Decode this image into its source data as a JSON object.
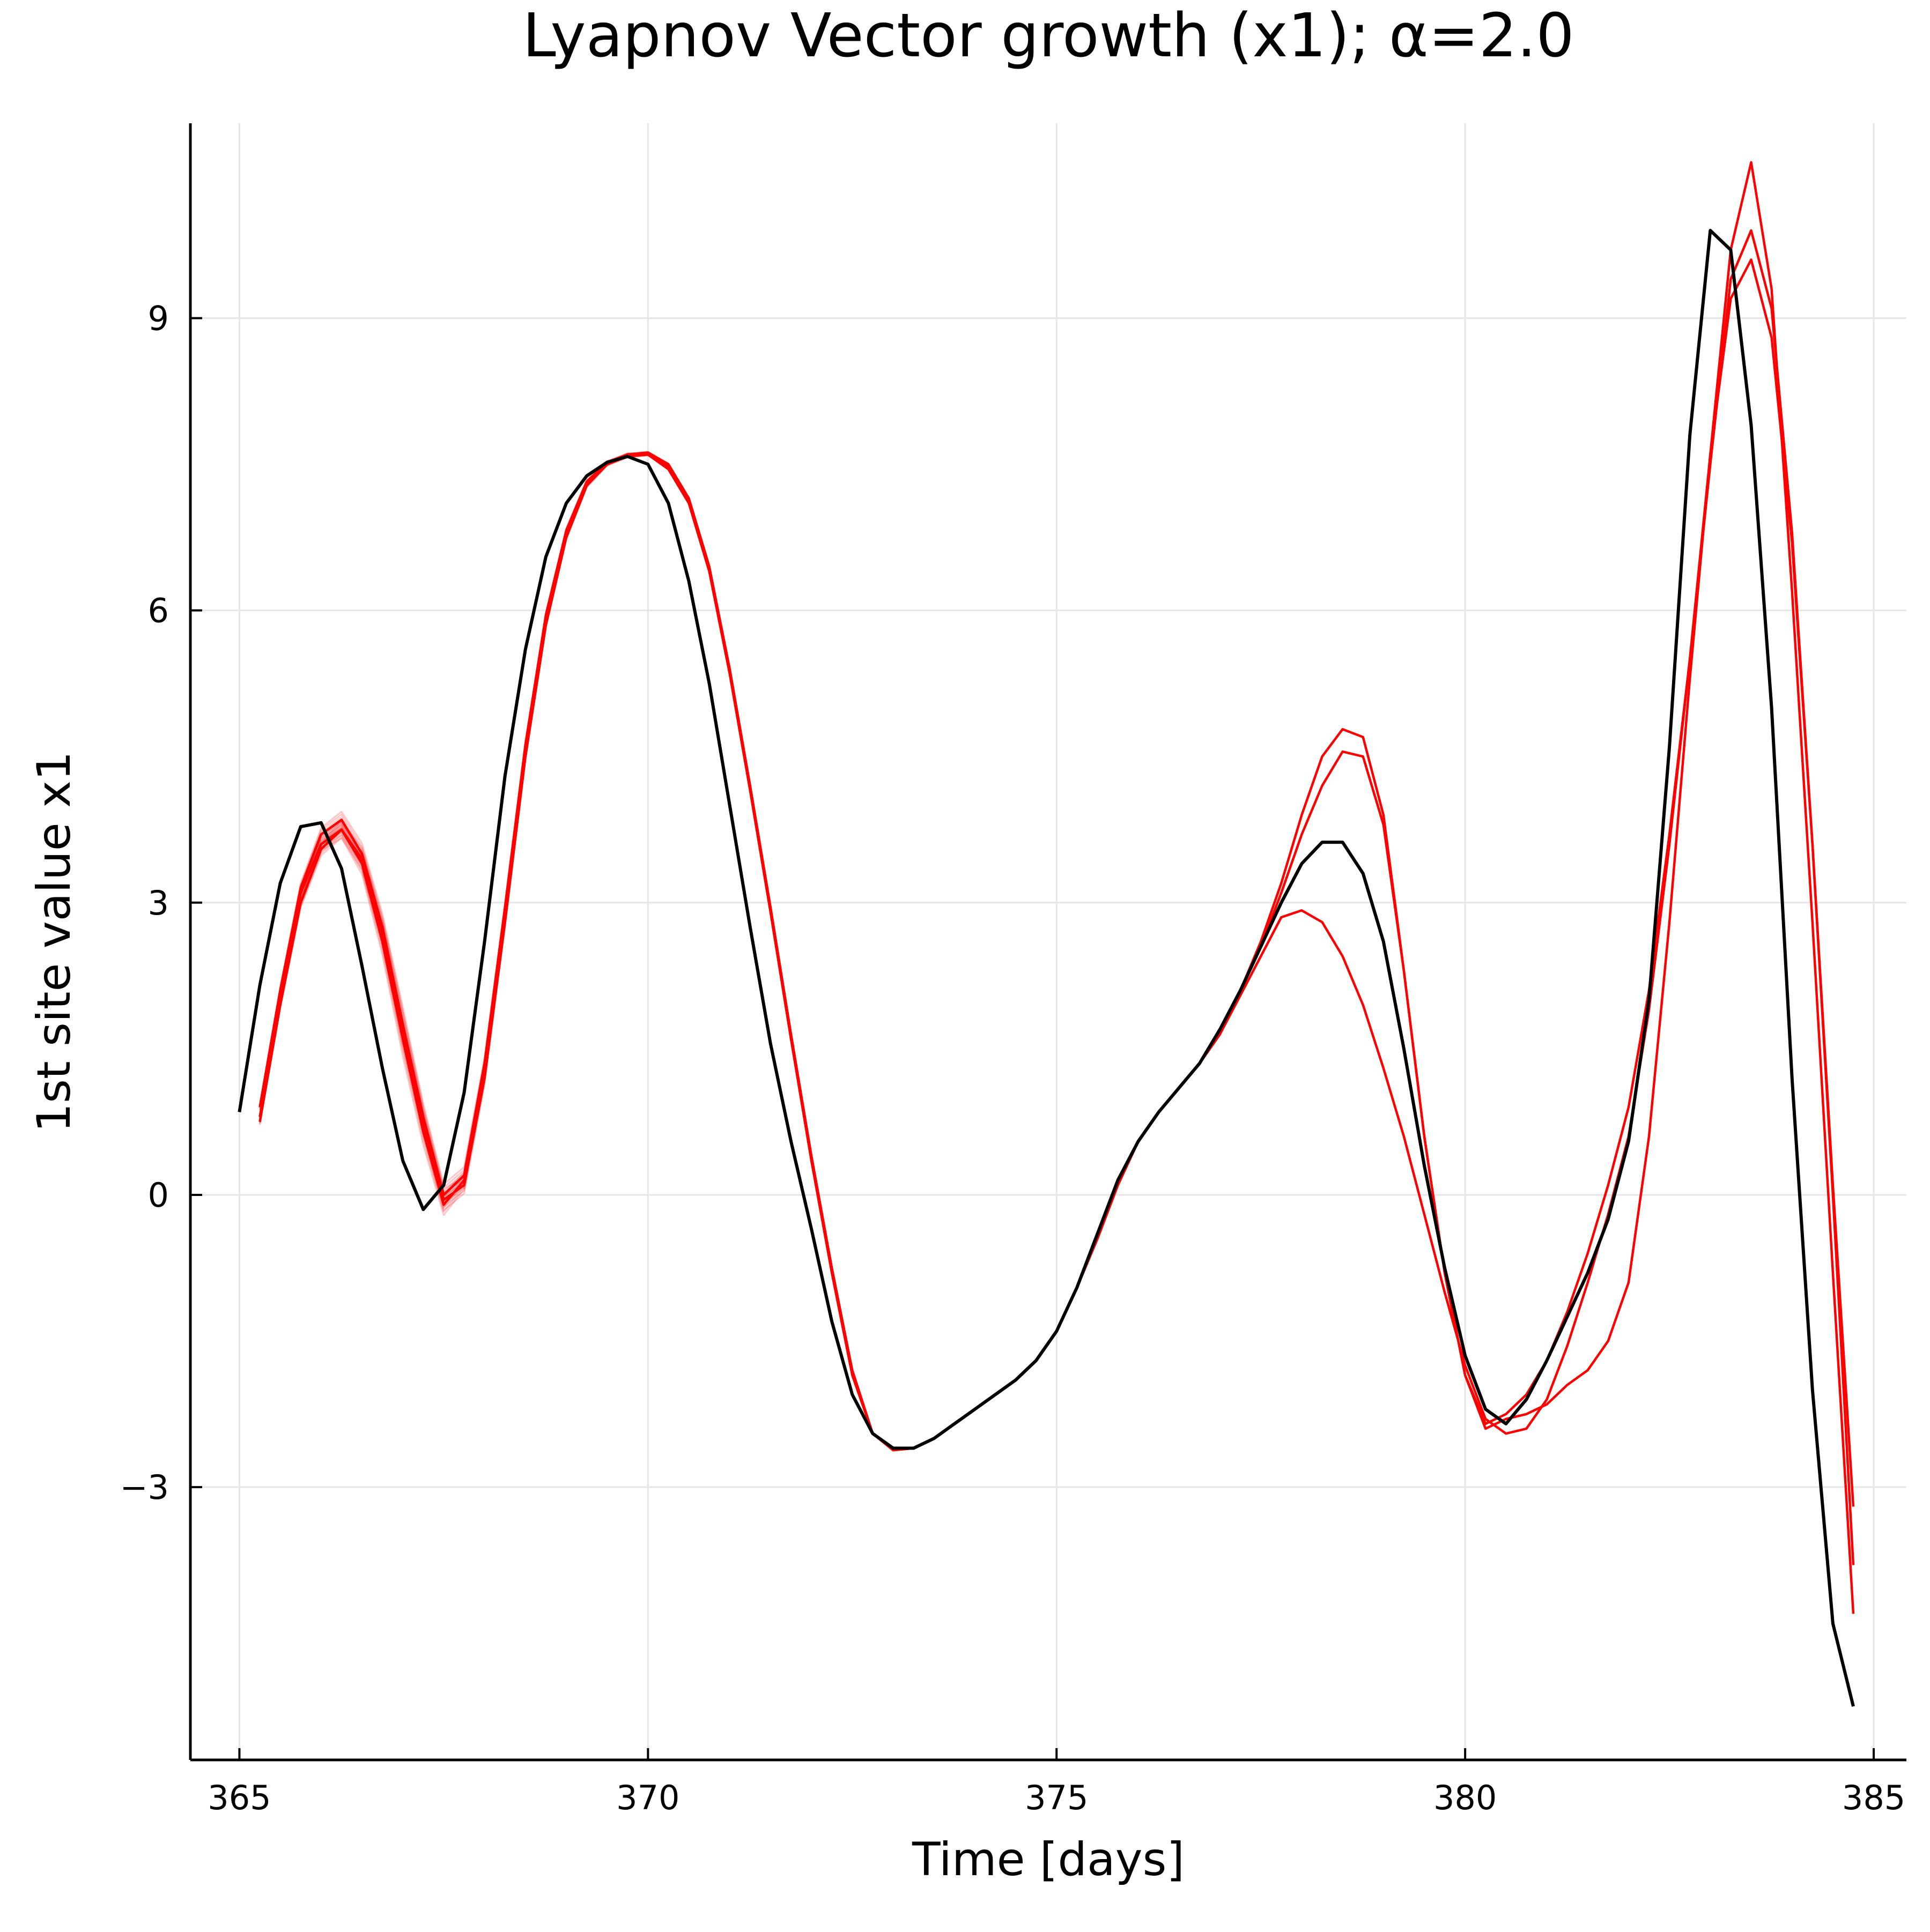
{
  "chart_data": {
    "type": "line",
    "title": "Lyapnov Vector growth (x1); α=2.0",
    "xlabel": "Time [days]",
    "ylabel": "1st site value x1",
    "xlim": [
      364.4,
      385.4
    ],
    "ylim": [
      -5.8,
      11.0
    ],
    "x_ticks": [
      365,
      370,
      375,
      380,
      385
    ],
    "y_ticks": [
      -3,
      0,
      3,
      6,
      9
    ],
    "x_tick_labels": [
      "365",
      "370",
      "375",
      "380",
      "385"
    ],
    "y_tick_labels": [
      "−3",
      "0",
      "3",
      "6",
      "9"
    ],
    "grid": true,
    "legend": "none",
    "colors": {
      "reference": "#000000",
      "perturbed": "#ff0000"
    },
    "series": [
      {
        "role": "reference",
        "color": "#000000",
        "x": [
          365.0,
          365.25,
          365.5,
          365.75,
          366.0,
          366.25,
          366.5,
          366.75,
          367.0,
          367.25,
          367.5,
          367.75,
          368.0,
          368.25,
          368.5,
          368.75,
          369.0,
          369.25,
          369.5,
          369.75,
          370.0,
          370.25,
          370.5,
          370.75,
          371.0,
          371.25,
          371.5,
          371.75,
          372.0,
          372.25,
          372.5,
          372.75,
          373.0,
          373.25,
          373.5,
          373.75,
          374.0,
          374.25,
          374.5,
          374.75,
          375.0,
          375.25,
          375.5,
          375.75,
          376.0,
          376.25,
          376.5,
          376.75,
          377.0,
          377.25,
          377.5,
          377.75,
          378.0,
          378.25,
          378.5,
          378.75,
          379.0,
          379.25,
          379.5,
          379.75,
          380.0,
          380.25,
          380.5,
          380.75,
          381.0,
          381.25,
          381.5,
          381.75,
          382.0,
          382.25,
          382.5,
          382.75,
          383.0,
          383.25,
          383.5,
          383.75,
          384.0,
          384.25,
          384.5,
          384.75
        ],
        "y": [
          0.85,
          2.15,
          3.2,
          3.78,
          3.82,
          3.35,
          2.35,
          1.3,
          0.35,
          -0.15,
          0.1,
          1.05,
          2.6,
          4.3,
          5.6,
          6.55,
          7.1,
          7.38,
          7.52,
          7.58,
          7.5,
          7.1,
          6.3,
          5.25,
          4.0,
          2.75,
          1.55,
          0.55,
          -0.35,
          -1.3,
          -2.05,
          -2.45,
          -2.6,
          -2.6,
          -2.5,
          -2.35,
          -2.2,
          -2.05,
          -1.9,
          -1.7,
          -1.4,
          -0.95,
          -0.4,
          0.15,
          0.55,
          0.85,
          1.1,
          1.35,
          1.7,
          2.1,
          2.55,
          3.0,
          3.4,
          3.62,
          3.62,
          3.3,
          2.6,
          1.5,
          0.3,
          -0.75,
          -1.65,
          -2.2,
          -2.35,
          -2.1,
          -1.7,
          -1.25,
          -0.8,
          -0.25,
          0.55,
          2.0,
          4.6,
          7.8,
          9.9,
          9.7,
          7.9,
          5.0,
          1.2,
          -2.0,
          -4.4,
          -5.25
        ]
      },
      {
        "role": "perturbed",
        "color": "#ff0000",
        "x": [
          365.25,
          365.5,
          365.75,
          366.0,
          366.25,
          366.5,
          366.75,
          367.0,
          367.25,
          367.5,
          367.75,
          368.0,
          368.25,
          368.5,
          368.75,
          369.0,
          369.25,
          369.5,
          369.75,
          370.0,
          370.25,
          370.5,
          370.75,
          371.0,
          371.25,
          371.5,
          371.75,
          372.0,
          372.25,
          372.5,
          372.75,
          373.0,
          373.25,
          373.5,
          373.75,
          374.0,
          374.25,
          374.5,
          374.75,
          375.0,
          375.25,
          375.5,
          375.75,
          376.0,
          376.25,
          376.5,
          376.75,
          377.0,
          377.25,
          377.5,
          377.75,
          378.0,
          378.25,
          378.5,
          378.75,
          379.0,
          379.25,
          379.5,
          379.75,
          380.0,
          380.25,
          380.5,
          380.75,
          381.0,
          381.25,
          381.5,
          381.75,
          382.0,
          382.25,
          382.5,
          382.75,
          383.0,
          383.25,
          383.5,
          383.75,
          384.0,
          384.25,
          384.5,
          384.75
        ],
        "y": [
          0.8,
          2.0,
          3.1,
          3.6,
          3.75,
          3.4,
          2.6,
          1.6,
          0.65,
          -0.1,
          0.15,
          1.3,
          2.9,
          4.6,
          5.9,
          6.8,
          7.3,
          7.5,
          7.58,
          7.6,
          7.45,
          7.1,
          6.4,
          5.35,
          4.15,
          2.9,
          1.6,
          0.35,
          -0.8,
          -1.85,
          -2.45,
          -2.62,
          -2.6,
          -2.5,
          -2.35,
          -2.2,
          -2.05,
          -1.9,
          -1.7,
          -1.4,
          -0.95,
          -0.45,
          0.1,
          0.55,
          0.85,
          1.1,
          1.35,
          1.65,
          2.05,
          2.45,
          2.85,
          2.92,
          2.8,
          2.45,
          1.95,
          1.3,
          0.6,
          -0.2,
          -1.0,
          -1.75,
          -2.3,
          -2.45,
          -2.4,
          -2.1,
          -1.55,
          -0.9,
          -0.2,
          0.6,
          1.9,
          3.6,
          5.5,
          7.6,
          9.2,
          9.6,
          8.8,
          6.7,
          3.6,
          0.1,
          -3.2
        ]
      },
      {
        "role": "perturbed",
        "color": "#ff0000",
        "x": [
          365.25,
          365.5,
          365.75,
          366.0,
          366.25,
          366.5,
          366.75,
          367.0,
          367.25,
          367.5,
          367.75,
          368.0,
          368.25,
          368.5,
          368.75,
          369.0,
          369.25,
          369.5,
          369.75,
          370.0,
          370.25,
          370.5,
          370.75,
          371.0,
          371.25,
          371.5,
          371.75,
          372.0,
          372.25,
          372.5,
          372.75,
          373.0,
          373.25,
          373.5,
          373.75,
          374.0,
          374.25,
          374.5,
          374.75,
          375.0,
          375.25,
          375.5,
          375.75,
          376.0,
          376.25,
          376.5,
          376.75,
          377.0,
          377.25,
          377.5,
          377.75,
          378.0,
          378.25,
          378.5,
          378.75,
          379.0,
          379.25,
          379.5,
          379.75,
          380.0,
          380.25,
          380.5,
          380.75,
          381.0,
          381.25,
          381.5,
          381.75,
          382.0,
          382.25,
          382.5,
          382.75,
          383.0,
          383.25,
          383.5,
          383.75,
          384.0,
          384.25,
          384.5,
          384.75
        ],
        "y": [
          0.75,
          1.95,
          3.0,
          3.55,
          3.75,
          3.45,
          2.7,
          1.7,
          0.75,
          -0.05,
          0.1,
          1.2,
          2.8,
          4.5,
          5.85,
          6.75,
          7.28,
          7.5,
          7.6,
          7.62,
          7.5,
          7.15,
          6.45,
          5.4,
          4.2,
          2.95,
          1.65,
          0.4,
          -0.75,
          -1.8,
          -2.45,
          -2.62,
          -2.6,
          -2.5,
          -2.35,
          -2.2,
          -2.05,
          -1.9,
          -1.7,
          -1.4,
          -0.95,
          -0.45,
          0.1,
          0.55,
          0.85,
          1.1,
          1.35,
          1.65,
          2.1,
          2.6,
          3.2,
          3.9,
          4.5,
          4.78,
          4.7,
          3.9,
          2.3,
          0.6,
          -0.8,
          -1.85,
          -2.4,
          -2.3,
          -2.25,
          -2.15,
          -1.95,
          -1.8,
          -1.5,
          -0.9,
          0.6,
          2.8,
          5.3,
          7.6,
          9.7,
          10.6,
          9.3,
          6.2,
          2.8,
          -0.8,
          -4.3
        ]
      },
      {
        "role": "perturbed",
        "color": "#ff0000",
        "x": [
          365.25,
          365.5,
          365.75,
          366.0,
          366.25,
          366.5,
          366.75,
          367.0,
          367.25,
          367.5,
          367.75,
          368.0,
          368.25,
          368.5,
          368.75,
          369.0,
          369.25,
          369.5,
          369.75,
          370.0,
          370.25,
          370.5,
          370.75,
          371.0,
          371.25,
          371.5,
          371.75,
          372.0,
          372.25,
          372.5,
          372.75,
          373.0,
          373.25,
          373.5,
          373.75,
          374.0,
          374.25,
          374.5,
          374.75,
          375.0,
          375.25,
          375.5,
          375.75,
          376.0,
          376.25,
          376.5,
          376.75,
          377.0,
          377.25,
          377.5,
          377.75,
          378.0,
          378.25,
          378.5,
          378.75,
          379.0,
          379.25,
          379.5,
          379.75,
          380.0,
          380.25,
          380.5,
          380.75,
          381.0,
          381.25,
          381.5,
          381.75,
          382.0,
          382.25,
          382.5,
          382.75,
          383.0,
          383.25,
          383.5,
          383.75,
          384.0,
          384.25,
          384.5,
          384.75
        ],
        "y": [
          0.9,
          2.1,
          3.15,
          3.7,
          3.85,
          3.5,
          2.75,
          1.75,
          0.8,
          0.0,
          0.2,
          1.35,
          2.95,
          4.62,
          5.95,
          6.82,
          7.32,
          7.52,
          7.6,
          7.6,
          7.48,
          7.12,
          6.42,
          5.38,
          4.18,
          2.92,
          1.62,
          0.38,
          -0.78,
          -1.82,
          -2.45,
          -2.62,
          -2.6,
          -2.5,
          -2.35,
          -2.2,
          -2.05,
          -1.9,
          -1.7,
          -1.4,
          -0.95,
          -0.45,
          0.1,
          0.55,
          0.85,
          1.1,
          1.35,
          1.65,
          2.1,
          2.55,
          3.1,
          3.7,
          4.2,
          4.55,
          4.5,
          3.8,
          2.3,
          0.6,
          -0.8,
          -1.85,
          -2.35,
          -2.25,
          -2.05,
          -1.7,
          -1.2,
          -0.6,
          0.1,
          0.9,
          2.1,
          3.7,
          5.5,
          7.5,
          9.4,
          9.9,
          9.1,
          6.8,
          3.6,
          0.0,
          -3.8
        ]
      }
    ]
  }
}
